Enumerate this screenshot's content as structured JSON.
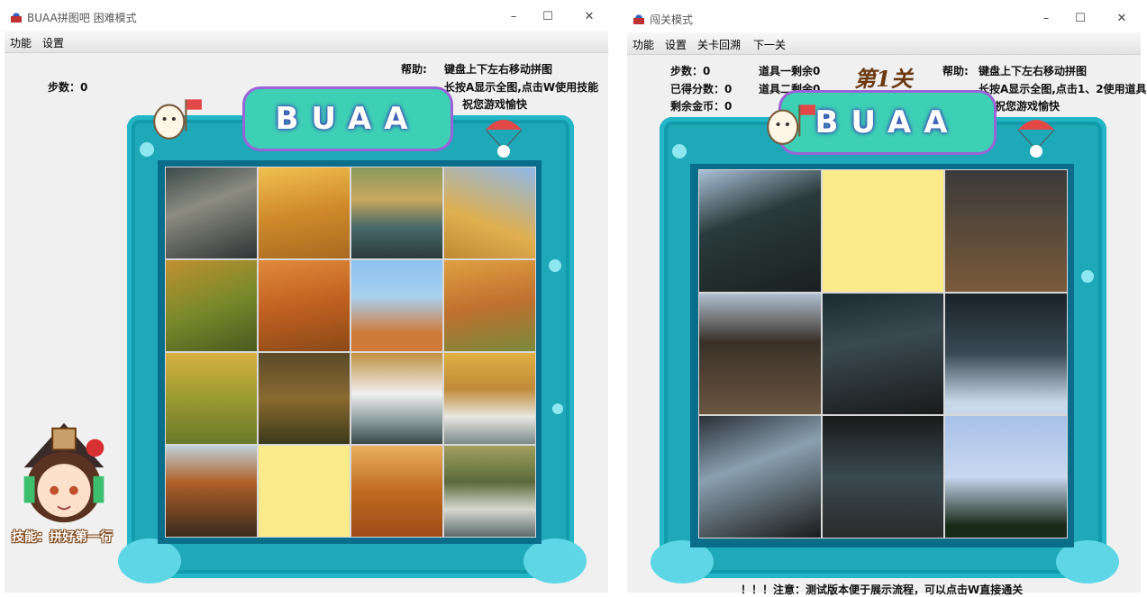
{
  "left_window": {
    "title": "BUAA拼图吧   困难模式",
    "menu": [
      "功能",
      "设置"
    ],
    "steps_label": "步数：0",
    "help_label": "帮助:",
    "help_lines": [
      "键盘上下左右移动拼图",
      "长按A显示全图,点击W使用技能",
      "祝您游戏愉快"
    ],
    "banner": "BUAA",
    "skill_label": "技能：拼好第一行",
    "grid": {
      "rows": 4,
      "cols": 4,
      "empty_index": 13,
      "empty_color": "#fbea8a"
    }
  },
  "right_window": {
    "title": "闯关模式",
    "menu": [
      "功能",
      "设置",
      "关卡回溯",
      "下一关"
    ],
    "steps_label": "步数：0",
    "score_label": "已得分数：0",
    "coins_label": "剩余金币：0",
    "prop1_label": "道具一剩余0",
    "prop2_label": "道具二剩余0",
    "level_title": "第1关",
    "help_label": "帮助:",
    "help_lines": [
      "键盘上下左右移动拼图",
      "长按A显示全图,点击1、2使用道具",
      "祝您游戏愉快"
    ],
    "banner": "BUAA",
    "notice": "！！！注意：测试版本便于展示流程，可以点击W直接通关",
    "grid": {
      "rows": 3,
      "cols": 3,
      "empty_index": 1,
      "empty_color": "#fbea8a"
    }
  },
  "window_controls": {
    "minimize": "–",
    "maximize": "☐",
    "close": "✕"
  },
  "colors": {
    "frame": "#1ea8b8",
    "banner": "#3ed0b4",
    "banner_border": "#9b63d8"
  }
}
